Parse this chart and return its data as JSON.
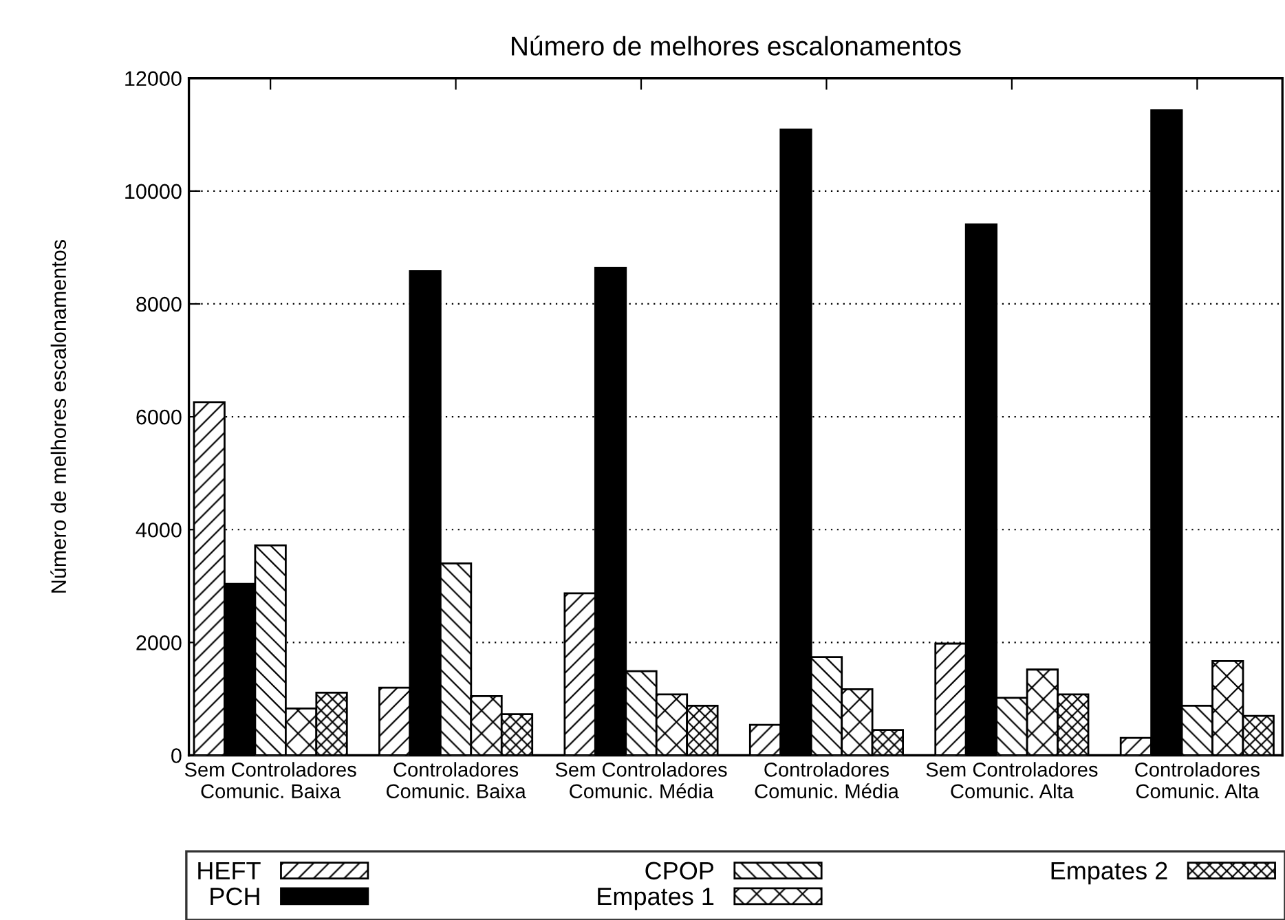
{
  "chart_data": {
    "type": "bar",
    "title": "Número de melhores escalonamentos",
    "ylabel": "Número de melhores escalonamentos",
    "categories": [
      "Sem Controladores\nComunic. Baixa",
      "Controladores\nComunic. Baixa",
      "Sem Controladores\nComunic. Média",
      "Controladores\nComunic. Média",
      "Sem Controladores\nComunic. Alta",
      "Controladores\nComunic. Alta"
    ],
    "series": [
      {
        "name": "HEFT",
        "color": "#000000",
        "values": [
          6260,
          1200,
          2870,
          540,
          1980,
          310
        ]
      },
      {
        "name": "PCH",
        "color": "#000000",
        "values": [
          3040,
          8580,
          8640,
          11090,
          9410,
          11430
        ]
      },
      {
        "name": "CPOP",
        "color": "#000000",
        "values": [
          3720,
          3400,
          1490,
          1740,
          1020,
          880
        ]
      },
      {
        "name": "Empates 1",
        "color": "#000000",
        "values": [
          830,
          1050,
          1080,
          1170,
          1520,
          1670
        ]
      },
      {
        "name": "Empates 2",
        "color": "#000000",
        "values": [
          1110,
          730,
          880,
          450,
          1080,
          700
        ]
      }
    ],
    "ylim": [
      0,
      12000
    ],
    "yticks": [
      0,
      2000,
      4000,
      6000,
      8000,
      10000,
      12000
    ],
    "grid": "y",
    "legend": "bottom"
  }
}
